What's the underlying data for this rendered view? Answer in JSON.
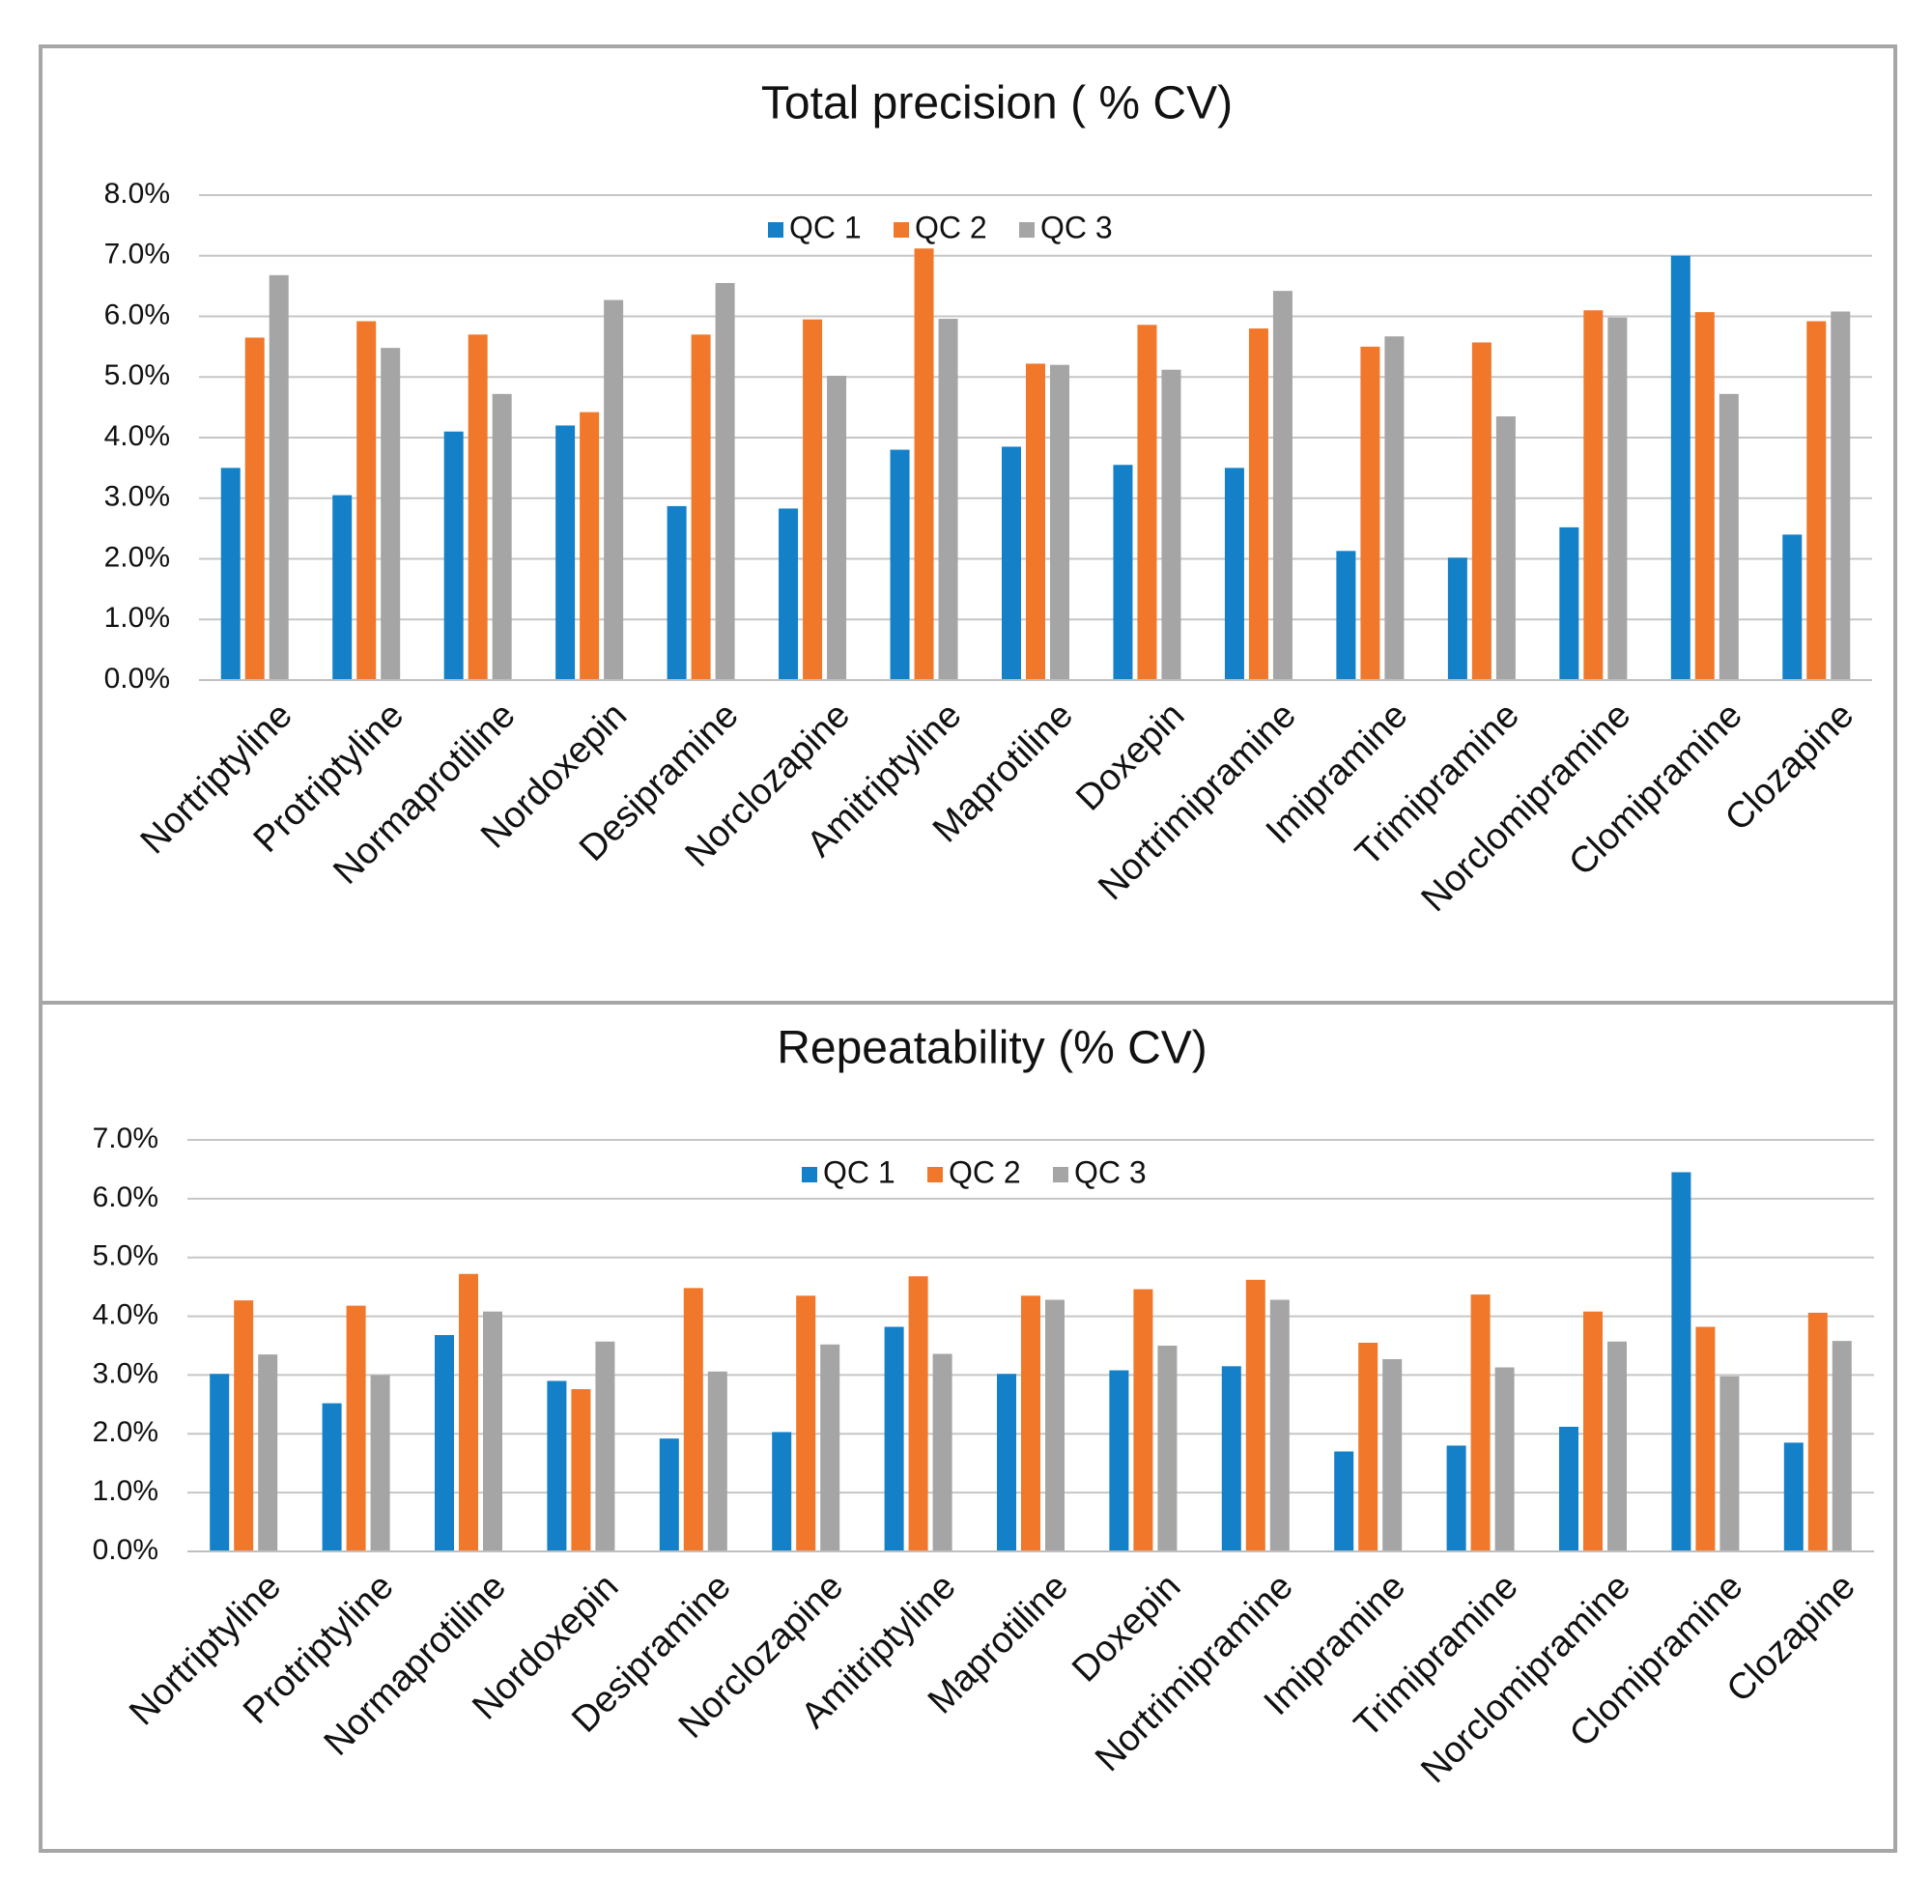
{
  "series_colors": [
    "#1380c7",
    "#f1782a",
    "#a5a5a5"
  ],
  "chart_data": [
    {
      "type": "bar",
      "title": "Total precision ( % CV)",
      "categories": [
        "Nortriptyline",
        "Protriptyline",
        "Normaprotiline",
        "Nordoxepin",
        "Desipramine",
        "Norclozapine",
        "Amitriptyline",
        "Maprotiline",
        "Doxepin",
        "Nortrimipramine",
        "Imipramine",
        "Trimipramine",
        "Norclomipramine",
        "Clomipramine",
        "Clozapine"
      ],
      "series": [
        {
          "name": "QC 1",
          "values": [
            3.5,
            3.05,
            4.1,
            4.2,
            2.87,
            2.83,
            3.8,
            3.85,
            3.55,
            3.5,
            2.13,
            2.02,
            2.52,
            7.0,
            2.4
          ]
        },
        {
          "name": "QC 2",
          "values": [
            5.65,
            5.92,
            5.7,
            4.42,
            5.7,
            5.95,
            7.12,
            5.22,
            5.86,
            5.8,
            5.5,
            5.57,
            6.1,
            6.07,
            5.92
          ]
        },
        {
          "name": "QC 3",
          "values": [
            6.68,
            5.48,
            4.72,
            6.27,
            6.55,
            5.02,
            5.96,
            5.2,
            5.12,
            6.42,
            5.67,
            4.35,
            5.98,
            4.72,
            6.08
          ]
        }
      ],
      "ylim": [
        0,
        8
      ],
      "yticks": [
        "0.0%",
        "1.0%",
        "2.0%",
        "3.0%",
        "4.0%",
        "5.0%",
        "6.0%",
        "7.0%",
        "8.0%"
      ],
      "xlabel": "",
      "ylabel": "",
      "legend": "top-center"
    },
    {
      "type": "bar",
      "title": "Repeatability (% CV)",
      "categories": [
        "Nortriptyline",
        "Protriptyline",
        "Normaprotiline",
        "Nordoxepin",
        "Desipramine",
        "Norclozapine",
        "Amitriptyline",
        "Maprotiline",
        "Doxepin",
        "Nortrimipramine",
        "Imipramine",
        "Trimipramine",
        "Norclomipramine",
        "Clomipramine",
        "Clozapine"
      ],
      "series": [
        {
          "name": "QC 1",
          "values": [
            3.02,
            2.52,
            3.68,
            2.9,
            1.92,
            2.03,
            3.82,
            3.02,
            3.08,
            3.15,
            1.7,
            1.8,
            2.12,
            6.45,
            1.85
          ]
        },
        {
          "name": "QC 2",
          "values": [
            4.27,
            4.18,
            4.72,
            2.76,
            4.48,
            4.35,
            4.68,
            4.35,
            4.46,
            4.62,
            3.55,
            4.37,
            4.08,
            3.82,
            4.06
          ]
        },
        {
          "name": "QC 3",
          "values": [
            3.35,
            3.0,
            4.08,
            3.57,
            3.06,
            3.52,
            3.36,
            4.28,
            3.5,
            4.28,
            3.27,
            3.13,
            3.57,
            2.98,
            3.58
          ]
        }
      ],
      "ylim": [
        0,
        7
      ],
      "yticks": [
        "0.0%",
        "1.0%",
        "2.0%",
        "3.0%",
        "4.0%",
        "5.0%",
        "6.0%",
        "7.0%"
      ],
      "xlabel": "",
      "ylabel": "",
      "legend": "top-center"
    }
  ]
}
